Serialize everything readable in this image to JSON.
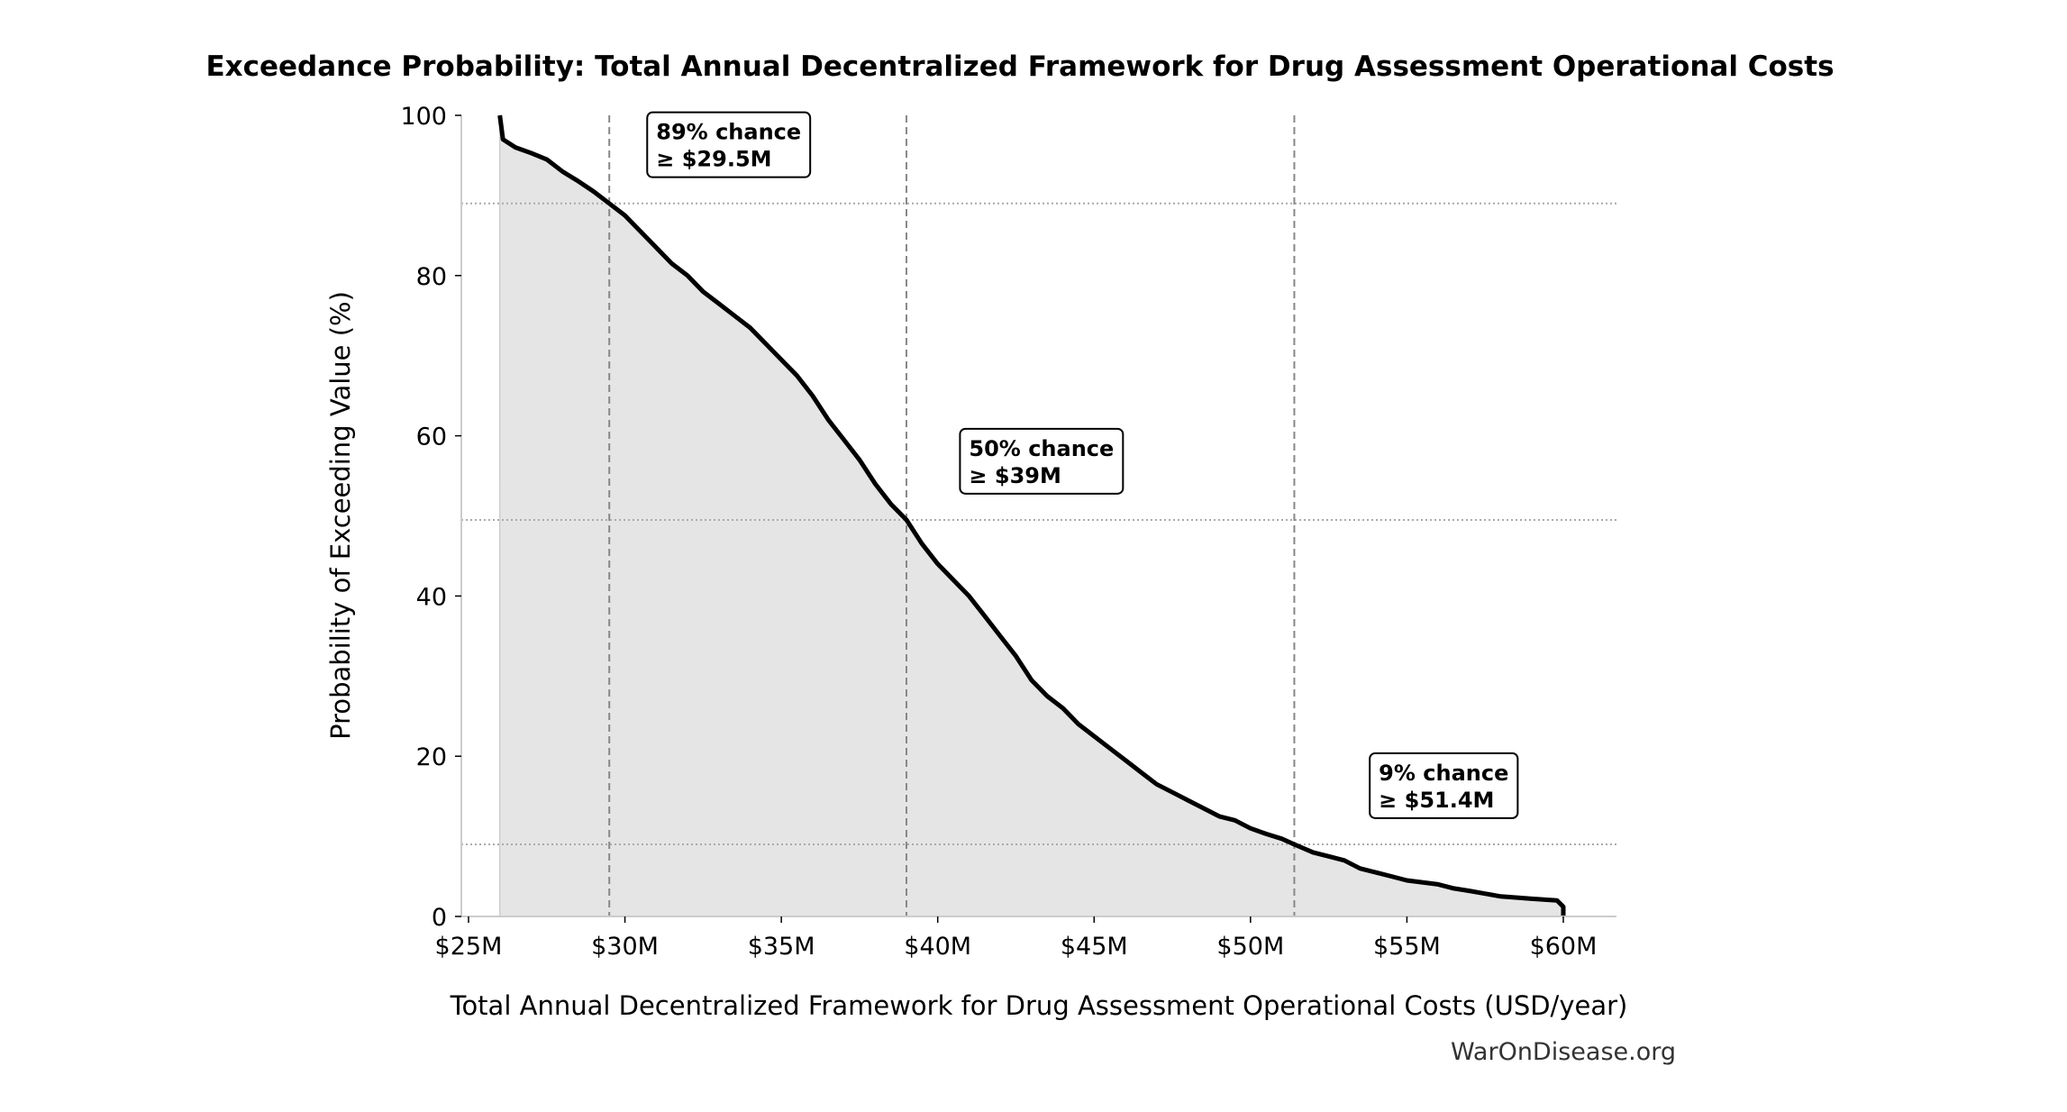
{
  "chart_data": {
    "type": "area",
    "title": "Exceedance Probability: Total Annual Decentralized Framework for Drug Assessment Operational Costs",
    "xlabel": "Total Annual Decentralized Framework for Drug Assessment Operational Costs (USD/year)",
    "ylabel": "Probability of Exceeding Value (%)",
    "xlim": [
      24.77,
      61.7
    ],
    "ylim": [
      0,
      100
    ],
    "x_unit": "USD millions",
    "x_ticks": [
      25,
      30,
      35,
      40,
      45,
      50,
      55,
      60
    ],
    "x_tick_labels": [
      "$25M",
      "$30M",
      "$35M",
      "$40M",
      "$45M",
      "$50M",
      "$55M",
      "$60M"
    ],
    "y_ticks": [
      0,
      20,
      40,
      60,
      80,
      100
    ],
    "y_tick_labels": [
      "0",
      "20",
      "40",
      "60",
      "80",
      "100"
    ],
    "grid": false,
    "colors": {
      "line": "#000000",
      "fill": "#e5e5e5",
      "reference": "#888888",
      "hline": "#aaaaaa"
    },
    "series": [
      {
        "x": [
          26.0,
          26.1,
          26.5,
          27,
          27.5,
          28,
          28.5,
          29,
          29.5,
          30,
          30.5,
          31,
          31.5,
          32,
          32.5,
          33,
          33.5,
          34,
          34.5,
          35,
          35.5,
          36,
          36.5,
          37,
          37.5,
          38,
          38.5,
          39,
          39.5,
          40,
          40.5,
          41,
          41.5,
          42,
          42.5,
          43,
          43.5,
          44,
          44.5,
          45,
          45.5,
          46,
          46.5,
          47,
          47.5,
          48,
          48.5,
          49,
          49.5,
          50,
          50.5,
          51,
          51.4,
          52,
          52.5,
          53,
          53.5,
          54,
          54.5,
          55,
          56,
          56.5,
          57,
          58,
          59,
          59.8,
          60,
          60
        ],
        "y": [
          100,
          97,
          96,
          95.3,
          94.5,
          93,
          91.8,
          90.5,
          89,
          87.5,
          85.5,
          83.5,
          81.5,
          80,
          78,
          76.5,
          75,
          73.5,
          71.5,
          69.5,
          67.5,
          65,
          62,
          59.5,
          57,
          54,
          51.5,
          49.5,
          46.5,
          44,
          42,
          40,
          37.5,
          35,
          32.5,
          29.5,
          27.5,
          26,
          24,
          22.5,
          21,
          19.5,
          18,
          16.5,
          15.5,
          14.5,
          13.5,
          12.5,
          12,
          11,
          10.3,
          9.7,
          9,
          8,
          7.5,
          7,
          6,
          5.5,
          5,
          4.5,
          4,
          3.5,
          3.2,
          2.5,
          2.2,
          2,
          1.2,
          0
        ]
      }
    ],
    "reference_lines": [
      {
        "x": 29.5,
        "y": 89,
        "annotation": [
          "89% chance",
          "≥ $29.5M"
        ],
        "label_x": 31.0,
        "label_y": 97
      },
      {
        "x": 39,
        "y": 49.5,
        "annotation": [
          "50% chance",
          "≥ $39M"
        ],
        "label_x": 41.0,
        "label_y": 57.5
      },
      {
        "x": 51.4,
        "y": 9,
        "annotation": [
          "9% chance",
          "≥ $51.4M"
        ],
        "label_x": 54.1,
        "label_y": 17
      }
    ],
    "footer": "WarOnDisease.org"
  }
}
